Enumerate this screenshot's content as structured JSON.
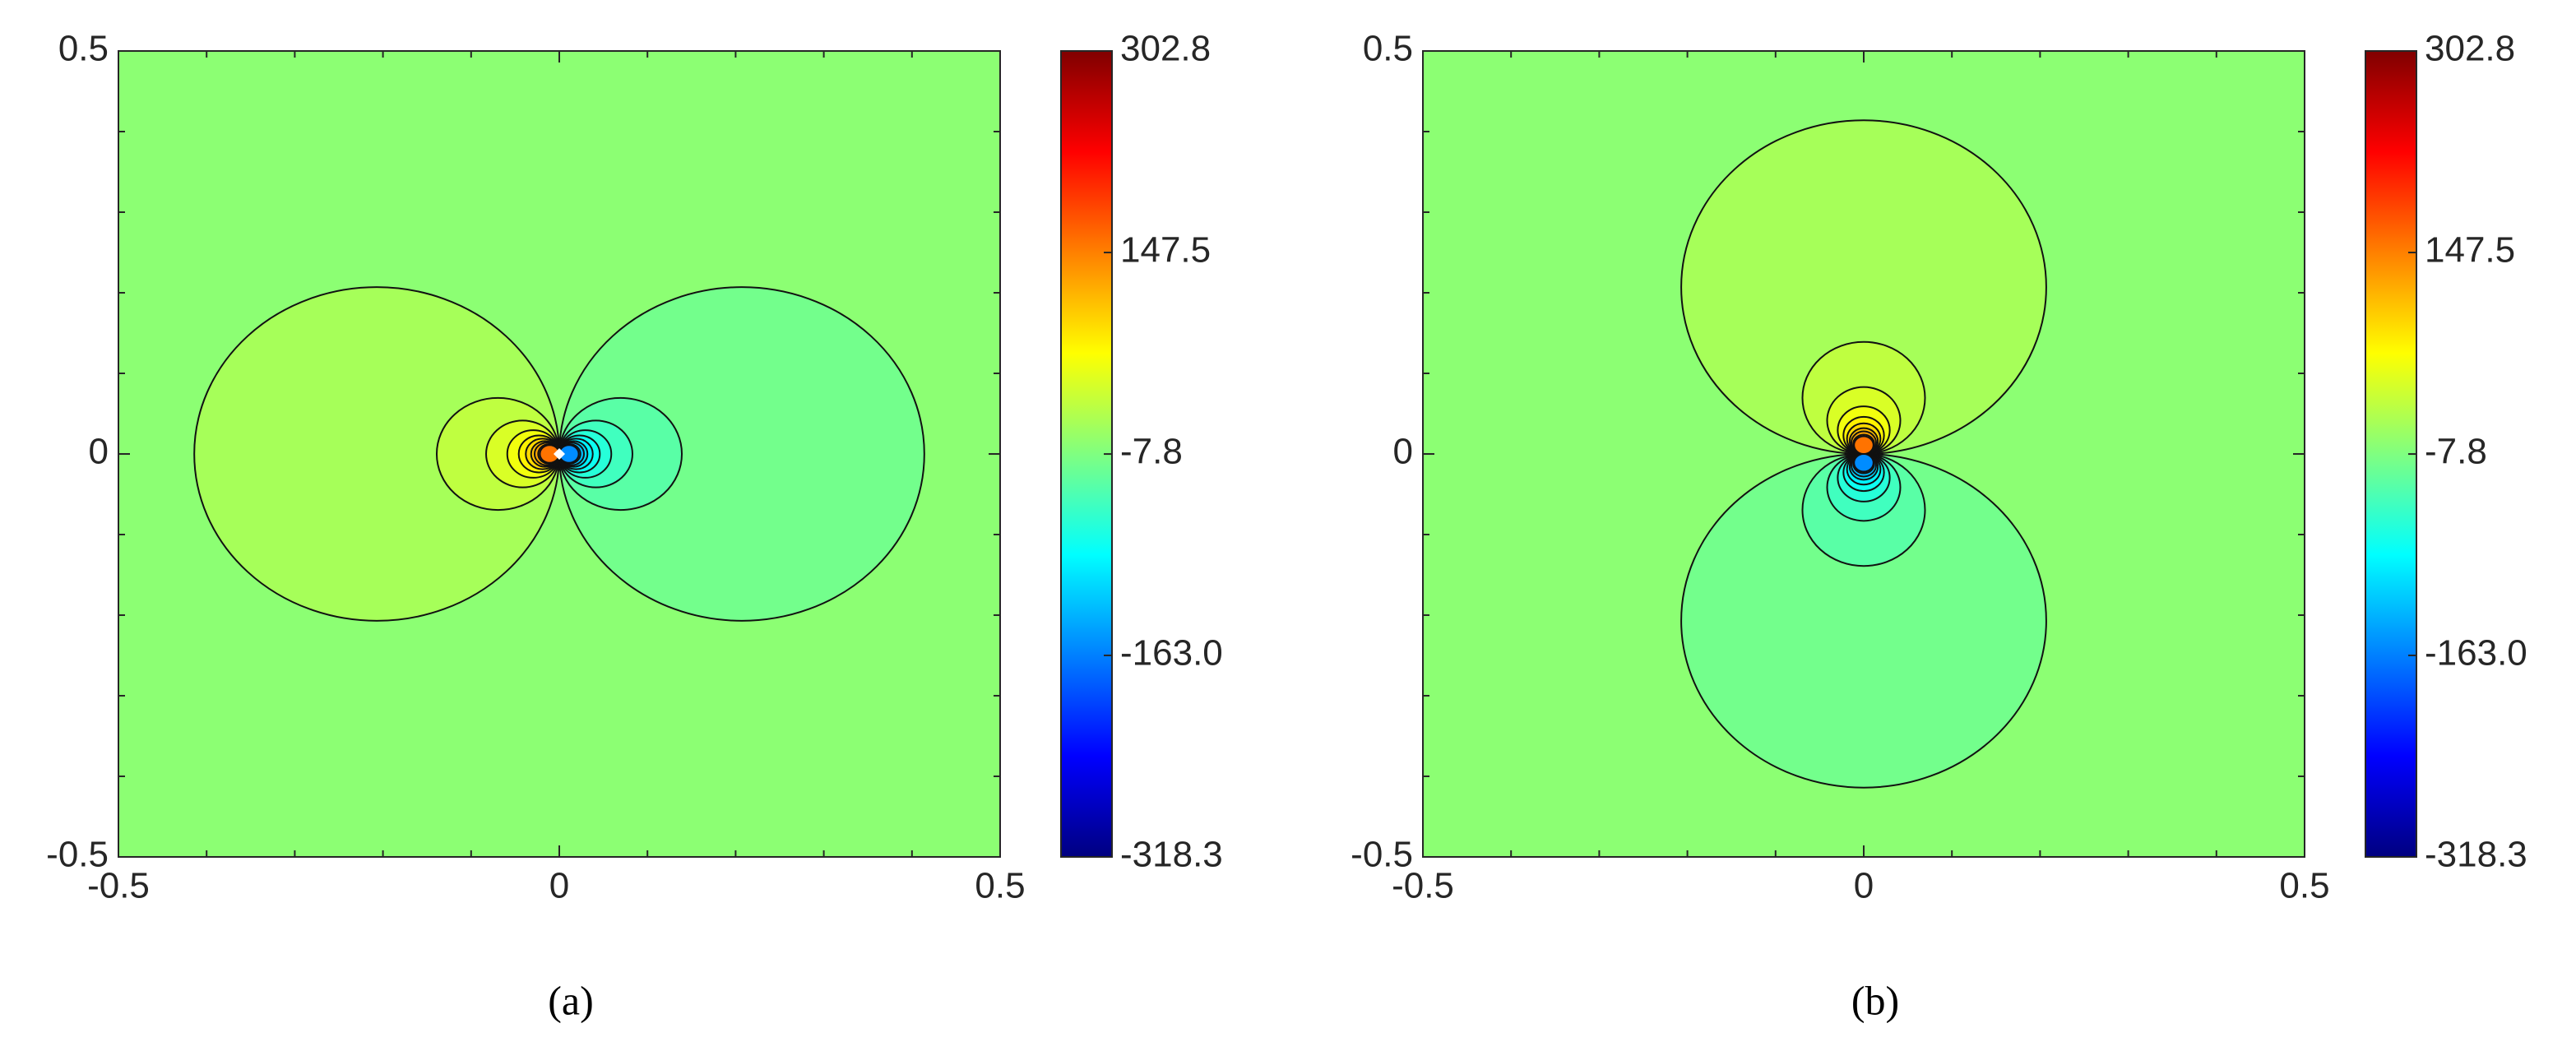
{
  "chart_data": [
    {
      "type": "contour",
      "panel_label": "(a)",
      "positive_side": "left",
      "xlim": [
        -0.5,
        0.5
      ],
      "ylim": [
        -0.5,
        0.5
      ],
      "xticks": [
        -0.5,
        0,
        0.5
      ],
      "yticks": [
        -0.5,
        0,
        0.5
      ],
      "xminorticks": [
        -0.4,
        -0.3,
        -0.2,
        -0.1,
        0.1,
        0.2,
        0.3,
        0.4
      ],
      "yminorticks": [
        -0.4,
        -0.3,
        -0.2,
        -0.1,
        0.1,
        0.2,
        0.3,
        0.4
      ],
      "colormap": "jet",
      "clim": [
        -318.3,
        302.8
      ],
      "cbticks": [
        302.8,
        147.5,
        -7.8,
        {
          "value": -163,
          "label": "-163.0"
        },
        -318.3
      ],
      "contours": {
        "levels": [
          7.8,
          23.3,
          38.8,
          54.4,
          69.9,
          85.4,
          101,
          116.5,
          132,
          147.5,
          -7.8,
          -23.3,
          -38.8,
          -54.4,
          -69.9,
          -85.4,
          -101,
          -116.5,
          -132,
          -147.5
        ],
        "diameters": [
          0.414,
          0.139,
          0.083,
          0.059,
          0.046,
          0.038,
          0.032,
          0.028,
          0.024,
          0.022,
          0.414,
          0.139,
          0.083,
          0.059,
          0.046,
          0.038,
          0.032,
          0.028,
          0.024,
          0.022
        ]
      }
    },
    {
      "type": "contour",
      "panel_label": "(b)",
      "positive_side": "top",
      "xlim": [
        -0.5,
        0.5
      ],
      "ylim": [
        -0.5,
        0.5
      ],
      "xticks": [
        -0.5,
        0,
        0.5
      ],
      "yticks": [
        -0.5,
        0,
        0.5
      ],
      "xminorticks": [
        -0.4,
        -0.3,
        -0.2,
        -0.1,
        0.1,
        0.2,
        0.3,
        0.4
      ],
      "yminorticks": [
        -0.4,
        -0.3,
        -0.2,
        -0.1,
        0.1,
        0.2,
        0.3,
        0.4
      ],
      "colormap": "jet",
      "clim": [
        -318.3,
        302.8
      ],
      "cbticks": [
        302.8,
        147.5,
        -7.8,
        {
          "value": -163,
          "label": "-163.0"
        },
        -318.3
      ],
      "contours": {
        "levels": [
          7.8,
          23.3,
          38.8,
          54.4,
          69.9,
          85.4,
          101,
          116.5,
          132,
          147.5,
          -7.8,
          -23.3,
          -38.8,
          -54.4,
          -69.9,
          -85.4,
          -101,
          -116.5,
          -132,
          -147.5
        ],
        "diameters": [
          0.414,
          0.139,
          0.083,
          0.059,
          0.046,
          0.038,
          0.032,
          0.028,
          0.024,
          0.022,
          0.414,
          0.139,
          0.083,
          0.059,
          0.046,
          0.038,
          0.032,
          0.028,
          0.024,
          0.022
        ]
      }
    }
  ]
}
